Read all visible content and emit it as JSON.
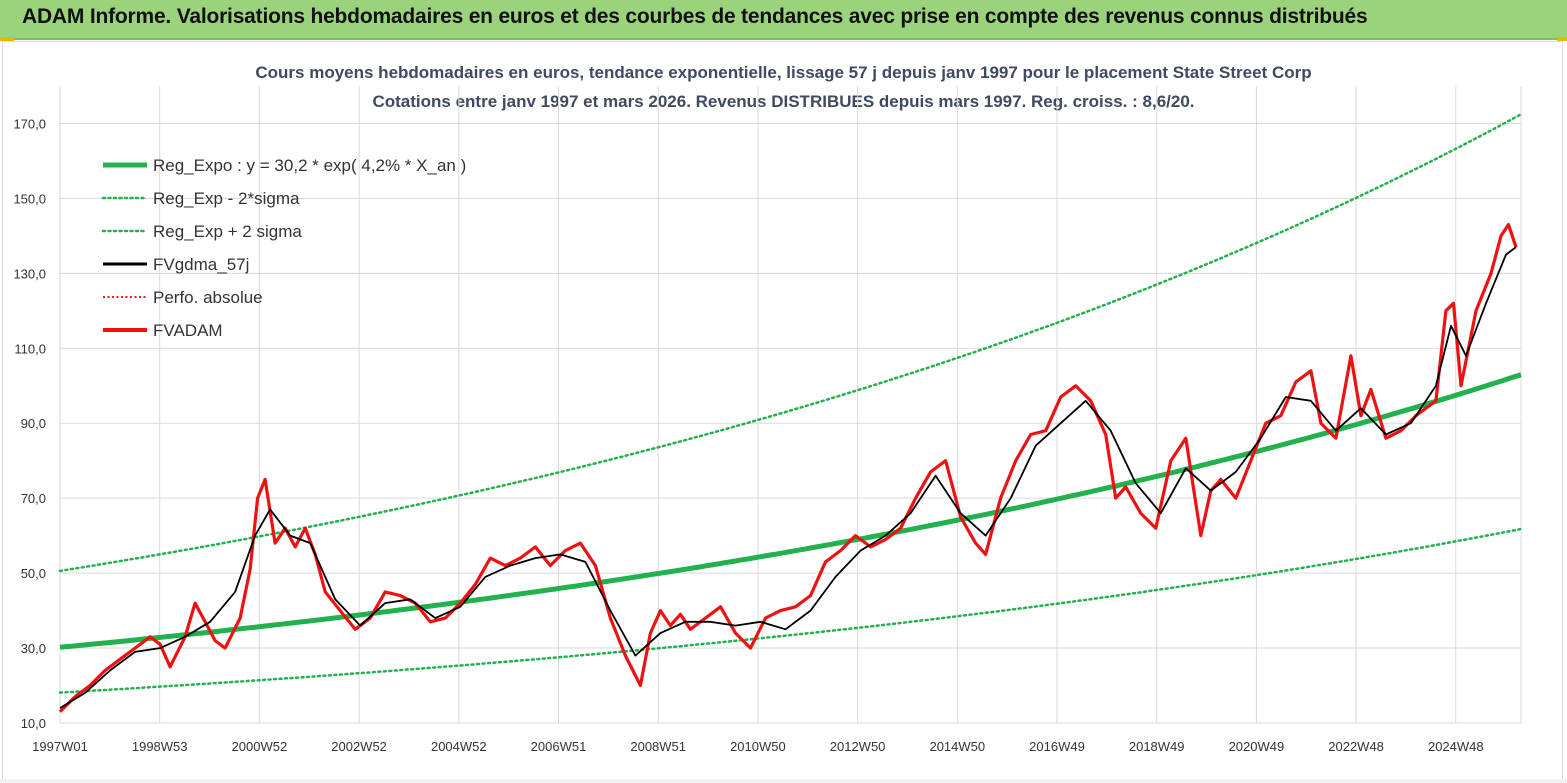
{
  "banner": {
    "title": "ADAM Informe. Valorisations hebdomadaires en euros et des courbes de tendances avec prise en compte des revenus connus distribués"
  },
  "chart_data": {
    "type": "line",
    "title": "Cours moyens hebdomadaires en euros, tendance exponentielle, lissage 57 j depuis janv 1997 pour le placement State Street Corp",
    "subtitle": "Cotations entre janv 1997 et mars 2026. Revenus DISTRIBUES depuis mars 1997. Reg. croiss. : 8,6/20.",
    "xlabel": "",
    "ylabel": "",
    "ylim": [
      10,
      180
    ],
    "yticks": [
      "10,0",
      "30,0",
      "50,0",
      "70,0",
      "90,0",
      "110,0",
      "130,0",
      "150,0",
      "170,0"
    ],
    "xticks": [
      "1997W01",
      "1998W53",
      "2000W52",
      "2002W52",
      "2004W52",
      "2006W51",
      "2008W51",
      "2010W50",
      "2012W50",
      "2014W50",
      "2016W49",
      "2018W49",
      "2020W49",
      "2022W48",
      "2024W48"
    ],
    "xlim": [
      1997.0,
      2026.2
    ],
    "grid": true,
    "legend_position": "top-left",
    "legend": [
      {
        "label": "Reg_Expo : y = 30,2 * exp( 4,2% *  X_an )",
        "color": "#22b14c",
        "style": "solid-thick"
      },
      {
        "label": "Reg_Exp - 2*sigma",
        "color": "#22b14c",
        "style": "dotted"
      },
      {
        "label": "Reg_Exp + 2 sigma",
        "color": "#22b14c",
        "style": "dotted"
      },
      {
        "label": "FVgdma_57j",
        "color": "#000000",
        "style": "solid"
      },
      {
        "label": "Perfo. absolue",
        "color": "#e00000",
        "style": "dotted"
      },
      {
        "label": "FVADAM",
        "color": "#ee1111",
        "style": "solid-thick"
      }
    ],
    "regression": {
      "a": 30.2,
      "rate": 0.042,
      "lower_factor": 0.6,
      "upper_factor": 1.675
    },
    "series": [
      {
        "name": "FVADAM",
        "x": [
          1997.0,
          1997.3,
          1997.6,
          1997.9,
          1998.2,
          1998.5,
          1998.8,
          1999.0,
          1999.2,
          1999.5,
          1999.7,
          1999.9,
          2000.1,
          2000.3,
          2000.6,
          2000.8,
          2000.95,
          2001.1,
          2001.3,
          2001.5,
          2001.7,
          2001.9,
          2002.1,
          2002.3,
          2002.6,
          2002.9,
          2003.2,
          2003.5,
          2003.8,
          2004.1,
          2004.4,
          2004.7,
          2005.0,
          2005.3,
          2005.6,
          2005.9,
          2006.2,
          2006.5,
          2006.8,
          2007.1,
          2007.4,
          2007.7,
          2008.0,
          2008.3,
          2008.6,
          2008.8,
          2009.0,
          2009.2,
          2009.4,
          2009.6,
          2009.9,
          2010.2,
          2010.5,
          2010.8,
          2011.1,
          2011.4,
          2011.7,
          2012.0,
          2012.3,
          2012.6,
          2012.9,
          2013.2,
          2013.5,
          2013.8,
          2014.1,
          2014.4,
          2014.7,
          2015.0,
          2015.3,
          2015.5,
          2015.8,
          2016.1,
          2016.4,
          2016.7,
          2017.0,
          2017.3,
          2017.6,
          2017.9,
          2018.1,
          2018.3,
          2018.6,
          2018.9,
          2019.2,
          2019.5,
          2019.8,
          2020.0,
          2020.2,
          2020.5,
          2020.8,
          2021.1,
          2021.4,
          2021.7,
          2022.0,
          2022.2,
          2022.5,
          2022.8,
          2023.0,
          2023.2,
          2023.5,
          2023.8,
          2024.1,
          2024.3,
          2024.5,
          2024.7,
          2024.85,
          2025.0,
          2025.3,
          2025.6,
          2025.8,
          2025.95,
          2026.1
        ],
        "values": [
          13,
          17,
          20,
          24,
          27,
          30,
          33,
          31,
          25,
          33,
          42,
          37,
          32,
          30,
          38,
          51,
          70,
          75,
          58,
          62,
          57,
          62,
          55,
          45,
          40,
          35,
          38,
          45,
          44,
          42,
          37,
          38,
          42,
          47,
          54,
          52,
          54,
          57,
          52,
          56,
          58,
          52,
          38,
          28,
          20,
          34,
          40,
          36,
          39,
          35,
          38,
          41,
          34,
          30,
          38,
          40,
          41,
          44,
          53,
          56,
          60,
          57,
          59,
          62,
          70,
          77,
          80,
          65,
          58,
          55,
          70,
          80,
          87,
          88,
          97,
          100,
          96,
          87,
          70,
          73,
          66,
          62,
          80,
          86,
          60,
          72,
          75,
          70,
          80,
          90,
          92,
          101,
          104,
          90,
          86,
          108,
          92,
          99,
          86,
          88,
          92,
          94,
          96,
          120,
          122,
          100,
          120,
          130,
          140,
          143,
          137
        ]
      },
      {
        "name": "FVgdma_57j",
        "x": [
          1997.0,
          1997.5,
          1998.0,
          1998.5,
          1999.0,
          1999.5,
          2000.0,
          2000.5,
          2000.9,
          2001.2,
          2001.6,
          2002.0,
          2002.5,
          2003.0,
          2003.5,
          2004.0,
          2004.5,
          2005.0,
          2005.5,
          2006.0,
          2006.5,
          2007.0,
          2007.5,
          2008.0,
          2008.5,
          2009.0,
          2009.5,
          2010.0,
          2010.5,
          2011.0,
          2011.5,
          2012.0,
          2012.5,
          2013.0,
          2013.5,
          2014.0,
          2014.5,
          2015.0,
          2015.5,
          2016.0,
          2016.5,
          2017.0,
          2017.5,
          2018.0,
          2018.5,
          2019.0,
          2019.5,
          2020.0,
          2020.5,
          2021.0,
          2021.5,
          2022.0,
          2022.5,
          2023.0,
          2023.5,
          2024.0,
          2024.5,
          2024.8,
          2025.1,
          2025.5,
          2025.9,
          2026.1
        ],
        "values": [
          14,
          18,
          24,
          29,
          30,
          33,
          37,
          45,
          60,
          67,
          60,
          58,
          43,
          36,
          42,
          43,
          38,
          41,
          49,
          52,
          54,
          55,
          53,
          40,
          28,
          34,
          37,
          37,
          36,
          37,
          35,
          40,
          49,
          56,
          60,
          66,
          76,
          66,
          60,
          70,
          84,
          90,
          96,
          88,
          74,
          66,
          78,
          72,
          77,
          86,
          97,
          96,
          88,
          94,
          87,
          90,
          100,
          116,
          108,
          122,
          135,
          137
        ]
      }
    ]
  }
}
